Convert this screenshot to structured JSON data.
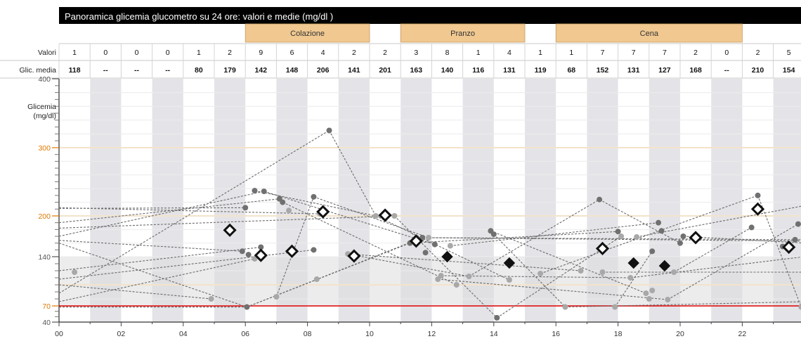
{
  "title": "Panoramica glicemia glucometro su 24 ore: valori e medie (mg/dl )",
  "meals": [
    {
      "label": "Colazione",
      "from_hour": 6,
      "to_hour": 10
    },
    {
      "label": "Pranzo",
      "from_hour": 11,
      "to_hour": 15
    },
    {
      "label": "Cena",
      "from_hour": 16,
      "to_hour": 22
    }
  ],
  "row_labels": {
    "values": "Valori",
    "mean": "Glic. media"
  },
  "ylabel_lines": [
    "Glicemia",
    "(mg/dl)"
  ],
  "colors": {
    "header_bg": "#000000",
    "header_text": "#ffffff",
    "meal_bg": "#f0c890",
    "stripe": "#e4e4e8",
    "target_band": "#dcdcdf",
    "tick_orange": "#e07800",
    "threshold_line": "#e00000",
    "highlight_grid": "#f3e3cb",
    "point_dark": "#707070",
    "point_light": "#a8a8a8",
    "line": "#6a6a6a"
  },
  "chart_data": {
    "type": "scatter",
    "title": "Panoramica glicemia glucometro su 24 ore: valori e medie (mg/dl )",
    "xlabel": "",
    "ylabel": "Glicemia (mg/dl)",
    "x_range": [
      0,
      24
    ],
    "x_ticks": [
      "00",
      "02",
      "04",
      "06",
      "08",
      "10",
      "12",
      "14",
      "16",
      "18",
      "20",
      "22"
    ],
    "y_range": [
      40,
      400
    ],
    "y_scale": "piecewise",
    "y_ticks": [
      40,
      70,
      140,
      200,
      300,
      400
    ],
    "y_ticks_highlighted": [
      70,
      200,
      300
    ],
    "target_range": [
      70,
      140
    ],
    "threshold": 70,
    "hourly_count": [
      "1",
      "0",
      "0",
      "0",
      "1",
      "2",
      "9",
      "6",
      "4",
      "2",
      "2",
      "3",
      "8",
      "1",
      "4",
      "1",
      "1",
      "7",
      "7",
      "7",
      "2",
      "0",
      "2",
      "5"
    ],
    "hourly_mean": [
      "118",
      "--",
      "--",
      "--",
      "80",
      "179",
      "142",
      "148",
      "206",
      "141",
      "201",
      "163",
      "140",
      "116",
      "131",
      "119",
      "68",
      "152",
      "131",
      "127",
      "168",
      "--",
      "210",
      "154"
    ],
    "hourly_means": [
      {
        "x": 5.5,
        "y": 179,
        "style": "open"
      },
      {
        "x": 6.5,
        "y": 142,
        "style": "open"
      },
      {
        "x": 7.5,
        "y": 148,
        "style": "open"
      },
      {
        "x": 8.5,
        "y": 206,
        "style": "open"
      },
      {
        "x": 9.5,
        "y": 141,
        "style": "open"
      },
      {
        "x": 10.5,
        "y": 201,
        "style": "open"
      },
      {
        "x": 11.5,
        "y": 163,
        "style": "open"
      },
      {
        "x": 12.5,
        "y": 140,
        "style": "filled"
      },
      {
        "x": 14.5,
        "y": 131,
        "style": "filled"
      },
      {
        "x": 17.5,
        "y": 152,
        "style": "open"
      },
      {
        "x": 18.5,
        "y": 131,
        "style": "filled"
      },
      {
        "x": 19.5,
        "y": 127,
        "style": "filled"
      },
      {
        "x": 20.5,
        "y": 168,
        "style": "open"
      },
      {
        "x": 22.5,
        "y": 210,
        "style": "open"
      },
      {
        "x": 23.5,
        "y": 154,
        "style": "open"
      }
    ],
    "readings": [
      {
        "x": 0.5,
        "y": 118,
        "tone": "light"
      },
      {
        "x": 4.9,
        "y": 80,
        "tone": "light"
      },
      {
        "x": 5.9,
        "y": 148,
        "tone": "dark"
      },
      {
        "x": 6.0,
        "y": 212,
        "tone": "dark"
      },
      {
        "x": 6.05,
        "y": 68,
        "tone": "dark"
      },
      {
        "x": 6.1,
        "y": 143,
        "tone": "dark"
      },
      {
        "x": 6.3,
        "y": 237,
        "tone": "dark"
      },
      {
        "x": 6.5,
        "y": 154,
        "tone": "dark"
      },
      {
        "x": 6.6,
        "y": 236,
        "tone": "dark"
      },
      {
        "x": 6.3,
        "y": 137,
        "tone": "light"
      },
      {
        "x": 7.1,
        "y": 225,
        "tone": "dark"
      },
      {
        "x": 7.2,
        "y": 220,
        "tone": "dark"
      },
      {
        "x": 7.0,
        "y": 83,
        "tone": "light"
      },
      {
        "x": 7.4,
        "y": 208,
        "tone": "light"
      },
      {
        "x": 8.2,
        "y": 150,
        "tone": "dark"
      },
      {
        "x": 8.2,
        "y": 228,
        "tone": "dark"
      },
      {
        "x": 8.3,
        "y": 108,
        "tone": "light"
      },
      {
        "x": 8.4,
        "y": 203,
        "tone": "light"
      },
      {
        "x": 8.7,
        "y": 325,
        "tone": "dark"
      },
      {
        "x": 9.3,
        "y": 144,
        "tone": "light"
      },
      {
        "x": 10.2,
        "y": 200,
        "tone": "light"
      },
      {
        "x": 10.8,
        "y": 200,
        "tone": "light"
      },
      {
        "x": 11.3,
        "y": 160,
        "tone": "dark"
      },
      {
        "x": 11.7,
        "y": 168,
        "tone": "dark"
      },
      {
        "x": 11.8,
        "y": 146,
        "tone": "dark"
      },
      {
        "x": 11.9,
        "y": 168,
        "tone": "light"
      },
      {
        "x": 12.1,
        "y": 158,
        "tone": "dark"
      },
      {
        "x": 12.2,
        "y": 108,
        "tone": "light"
      },
      {
        "x": 12.3,
        "y": 113,
        "tone": "light"
      },
      {
        "x": 12.6,
        "y": 156,
        "tone": "light"
      },
      {
        "x": 12.8,
        "y": 100,
        "tone": "light"
      },
      {
        "x": 13.2,
        "y": 112,
        "tone": "light"
      },
      {
        "x": 13.9,
        "y": 178,
        "tone": "dark"
      },
      {
        "x": 14.0,
        "y": 173,
        "tone": "dark"
      },
      {
        "x": 14.1,
        "y": 48,
        "tone": "dark"
      },
      {
        "x": 14.5,
        "y": 107,
        "tone": "light"
      },
      {
        "x": 15.5,
        "y": 116,
        "tone": "light"
      },
      {
        "x": 16.3,
        "y": 68,
        "tone": "light"
      },
      {
        "x": 16.8,
        "y": 120,
        "tone": "light"
      },
      {
        "x": 17.4,
        "y": 224,
        "tone": "dark"
      },
      {
        "x": 17.5,
        "y": 118,
        "tone": "light"
      },
      {
        "x": 17.9,
        "y": 68,
        "tone": "light"
      },
      {
        "x": 18.0,
        "y": 177,
        "tone": "dark"
      },
      {
        "x": 18.1,
        "y": 170,
        "tone": "light"
      },
      {
        "x": 18.4,
        "y": 110,
        "tone": "light"
      },
      {
        "x": 18.6,
        "y": 169,
        "tone": "light"
      },
      {
        "x": 18.9,
        "y": 88,
        "tone": "light"
      },
      {
        "x": 19.0,
        "y": 80,
        "tone": "light"
      },
      {
        "x": 19.1,
        "y": 92,
        "tone": "light"
      },
      {
        "x": 19.1,
        "y": 148,
        "tone": "dark"
      },
      {
        "x": 19.3,
        "y": 190,
        "tone": "dark"
      },
      {
        "x": 19.4,
        "y": 178,
        "tone": "dark"
      },
      {
        "x": 19.6,
        "y": 79,
        "tone": "light"
      },
      {
        "x": 19.8,
        "y": 118,
        "tone": "light"
      },
      {
        "x": 20.0,
        "y": 160,
        "tone": "dark"
      },
      {
        "x": 20.1,
        "y": 170,
        "tone": "dark"
      },
      {
        "x": 22.5,
        "y": 230,
        "tone": "dark"
      },
      {
        "x": 22.3,
        "y": 183,
        "tone": "dark"
      },
      {
        "x": 23.3,
        "y": 155,
        "tone": "dark"
      },
      {
        "x": 23.7,
        "y": 165,
        "tone": "dark"
      },
      {
        "x": 23.8,
        "y": 188,
        "tone": "dark"
      },
      {
        "x": 23.9,
        "y": 68,
        "tone": "light"
      }
    ],
    "lines": [
      [
        [
          0,
          211
        ],
        [
          6.1,
          212
        ]
      ],
      [
        [
          0,
          212
        ],
        [
          8.4,
          203
        ]
      ],
      [
        [
          0,
          190
        ],
        [
          7.1,
          225
        ]
      ],
      [
        [
          0,
          170
        ],
        [
          6.6,
          236
        ]
      ],
      [
        [
          0,
          164
        ],
        [
          5.9,
          148
        ]
      ],
      [
        [
          0,
          160
        ],
        [
          6.05,
          68
        ]
      ],
      [
        [
          0,
          182
        ],
        [
          10.8,
          200
        ]
      ],
      [
        [
          0,
          120
        ],
        [
          6.5,
          154
        ]
      ],
      [
        [
          0,
          108
        ],
        [
          8.2,
          150
        ]
      ],
      [
        [
          0,
          100
        ],
        [
          4.9,
          80
        ]
      ],
      [
        [
          0,
          88
        ],
        [
          8.7,
          325
        ]
      ],
      [
        [
          0,
          76
        ],
        [
          6.3,
          137
        ]
      ],
      [
        [
          0,
          68
        ],
        [
          6.05,
          68
        ]
      ],
      [
        [
          6.05,
          68
        ],
        [
          11.3,
          160
        ]
      ],
      [
        [
          6.05,
          68
        ],
        [
          11.7,
          168
        ]
      ],
      [
        [
          6.3,
          237
        ],
        [
          10.2,
          200
        ]
      ],
      [
        [
          6.6,
          236
        ],
        [
          12.1,
          158
        ]
      ],
      [
        [
          7.2,
          220
        ],
        [
          12.8,
          100
        ]
      ],
      [
        [
          7.0,
          83
        ],
        [
          8.2,
          228
        ]
      ],
      [
        [
          8.2,
          228
        ],
        [
          11.9,
          168
        ]
      ],
      [
        [
          8.7,
          325
        ],
        [
          10.2,
          200
        ]
      ],
      [
        [
          10.8,
          200
        ],
        [
          14.1,
          48
        ]
      ],
      [
        [
          10.2,
          200
        ],
        [
          14.5,
          107
        ]
      ],
      [
        [
          9.3,
          144
        ],
        [
          16.8,
          120
        ]
      ],
      [
        [
          9.3,
          144
        ],
        [
          13.2,
          112
        ]
      ],
      [
        [
          11.7,
          168
        ],
        [
          24,
          165
        ]
      ],
      [
        [
          11.9,
          168
        ],
        [
          24,
          163
        ]
      ],
      [
        [
          11.3,
          160
        ],
        [
          18.0,
          177
        ]
      ],
      [
        [
          12.6,
          156
        ],
        [
          19.3,
          190
        ]
      ],
      [
        [
          13.9,
          178
        ],
        [
          18.9,
          88
        ]
      ],
      [
        [
          14.0,
          173
        ],
        [
          16.3,
          68
        ]
      ],
      [
        [
          14.1,
          48
        ],
        [
          18.1,
          170
        ]
      ],
      [
        [
          12.2,
          108
        ],
        [
          19.6,
          79
        ]
      ],
      [
        [
          12.3,
          113
        ],
        [
          18.4,
          110
        ]
      ],
      [
        [
          13.2,
          112
        ],
        [
          17.4,
          224
        ]
      ],
      [
        [
          17.4,
          224
        ],
        [
          20.0,
          160
        ]
      ],
      [
        [
          17.9,
          68
        ],
        [
          19.1,
          148
        ]
      ],
      [
        [
          15.5,
          116
        ],
        [
          22.5,
          230
        ]
      ],
      [
        [
          16.3,
          68
        ],
        [
          24,
          76
        ]
      ],
      [
        [
          17.5,
          118
        ],
        [
          24,
          118
        ]
      ],
      [
        [
          18.4,
          110
        ],
        [
          24,
          140
        ]
      ],
      [
        [
          19.8,
          118
        ],
        [
          22.3,
          183
        ]
      ],
      [
        [
          19.6,
          79
        ],
        [
          23.8,
          188
        ]
      ],
      [
        [
          22.5,
          230
        ],
        [
          23.9,
          68
        ]
      ],
      [
        [
          18.6,
          169
        ],
        [
          24,
          215
        ]
      ],
      [
        [
          20.1,
          170
        ],
        [
          24,
          160
        ]
      ]
    ]
  }
}
